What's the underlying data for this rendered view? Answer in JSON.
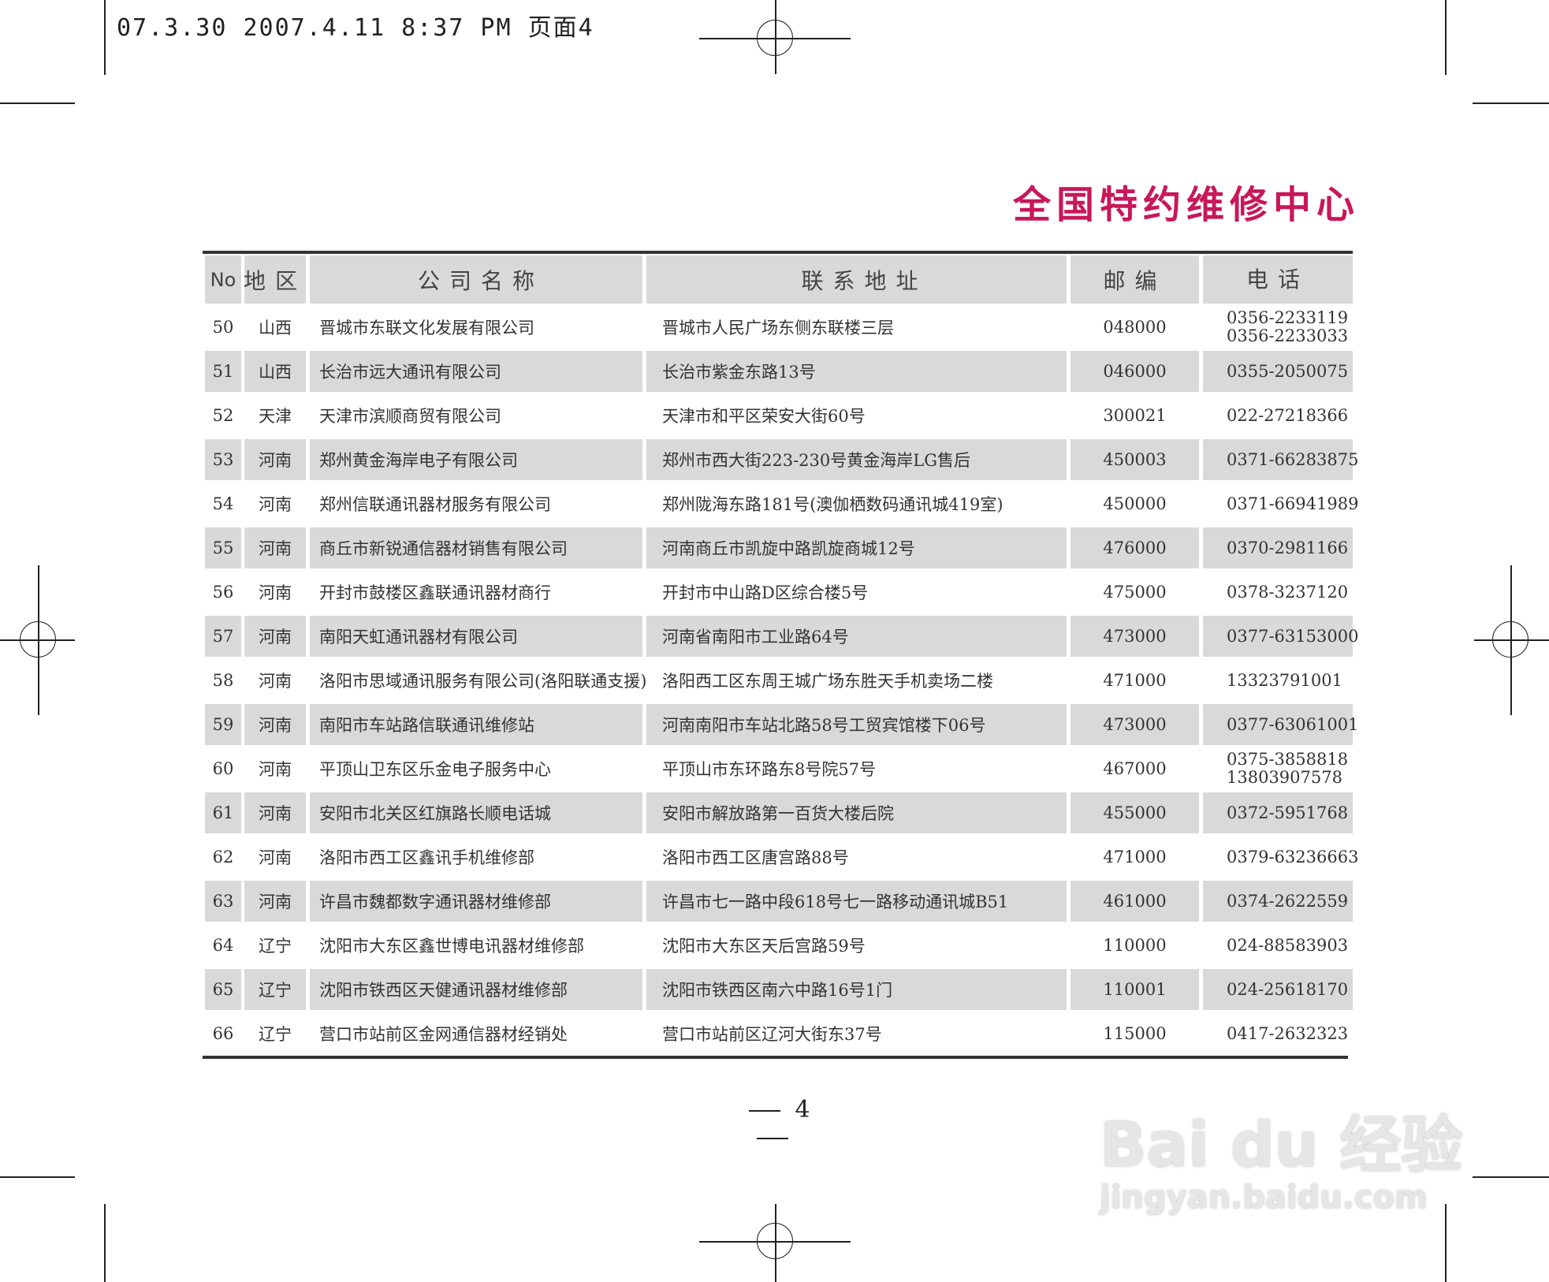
{
  "slug": "07.3.30  2007.4.11 8:37 PM 页面4",
  "title": "全国特约维修中心",
  "headers": [
    "No",
    "地区",
    "公司名称",
    "联系地址",
    "邮编",
    "电话"
  ],
  "rows": [
    {
      "no": "50",
      "region": "山西",
      "company": "晋城市东联文化发展有限公司",
      "address": "晋城市人民广场东侧东联楼三层",
      "postcode": "048000",
      "phones": [
        "0356-2233119",
        "0356-2233033"
      ]
    },
    {
      "no": "51",
      "region": "山西",
      "company": "长治市远大通讯有限公司",
      "address": "长治市紫金东路13号",
      "postcode": "046000",
      "phones": [
        "0355-2050075"
      ]
    },
    {
      "no": "52",
      "region": "天津",
      "company": "天津市滨顺商贸有限公司",
      "address": "天津市和平区荣安大街60号",
      "postcode": "300021",
      "phones": [
        "022-27218366"
      ]
    },
    {
      "no": "53",
      "region": "河南",
      "company": "郑州黄金海岸电子有限公司",
      "address": "郑州市西大街223-230号黄金海岸LG售后",
      "postcode": "450003",
      "phones": [
        "0371-66283875"
      ]
    },
    {
      "no": "54",
      "region": "河南",
      "company": "郑州信联通讯器材服务有限公司",
      "address": "郑州陇海东路181号(澳伽栖数码通讯城419室)",
      "postcode": "450000",
      "phones": [
        "0371-66941989"
      ]
    },
    {
      "no": "55",
      "region": "河南",
      "company": "商丘市新锐通信器材销售有限公司",
      "address": "河南商丘市凯旋中路凯旋商城12号",
      "postcode": "476000",
      "phones": [
        "0370-2981166"
      ]
    },
    {
      "no": "56",
      "region": "河南",
      "company": "开封市鼓楼区鑫联通讯器材商行",
      "address": "开封市中山路D区综合楼5号",
      "postcode": "475000",
      "phones": [
        "0378-3237120"
      ]
    },
    {
      "no": "57",
      "region": "河南",
      "company": "南阳天虹通讯器材有限公司",
      "address": "河南省南阳市工业路64号",
      "postcode": "473000",
      "phones": [
        "0377-63153000"
      ]
    },
    {
      "no": "58",
      "region": "河南",
      "company": "洛阳市思域通讯服务有限公司(洛阳联通支援)",
      "address": "洛阳西工区东周王城广场东胜天手机卖场二楼",
      "postcode": "471000",
      "phones": [
        "13323791001"
      ]
    },
    {
      "no": "59",
      "region": "河南",
      "company": "南阳市车站路信联通讯维修站",
      "address": "河南南阳市车站北路58号工贸宾馆楼下06号",
      "postcode": "473000",
      "phones": [
        "0377-63061001"
      ]
    },
    {
      "no": "60",
      "region": "河南",
      "company": "平顶山卫东区乐金电子服务中心",
      "address": "平顶山市东环路东8号院57号",
      "postcode": "467000",
      "phones": [
        "0375-3858818",
        "13803907578"
      ]
    },
    {
      "no": "61",
      "region": "河南",
      "company": "安阳市北关区红旗路长顺电话城",
      "address": "安阳市解放路第一百货大楼后院",
      "postcode": "455000",
      "phones": [
        "0372-5951768"
      ]
    },
    {
      "no": "62",
      "region": "河南",
      "company": "洛阳市西工区鑫讯手机维修部",
      "address": "洛阳市西工区唐宫路88号",
      "postcode": "471000",
      "phones": [
        "0379-63236663"
      ]
    },
    {
      "no": "63",
      "region": "河南",
      "company": "许昌市魏都数字通讯器材维修部",
      "address": "许昌市七一路中段618号七一路移动通讯城B51",
      "postcode": "461000",
      "phones": [
        "0374-2622559"
      ]
    },
    {
      "no": "64",
      "region": "辽宁",
      "company": " 沈阳市大东区鑫世博电讯器材维修部",
      "address": "沈阳市大东区天后宫路59号",
      "postcode": "110000",
      "phones": [
        "024-88583903"
      ]
    },
    {
      "no": "65",
      "region": "辽宁",
      "company": " 沈阳市铁西区天健通讯器材维修部",
      "address": "沈阳市铁西区南六中路16号1门",
      "postcode": "110001",
      "phones": [
        "024-25618170"
      ]
    },
    {
      "no": "66",
      "region": "辽宁",
      "company": "营口市站前区金网通信器材经销处",
      "address": "营口市站前区辽河大街东37号",
      "postcode": "115000",
      "phones": [
        "0417-2632323"
      ]
    }
  ],
  "page_number": "4",
  "watermark": {
    "brand": "Bai du 经验",
    "url": "jingyan.baidu.com"
  },
  "colors": {
    "title": "#c8175a",
    "shade": "#d9d9d9"
  }
}
